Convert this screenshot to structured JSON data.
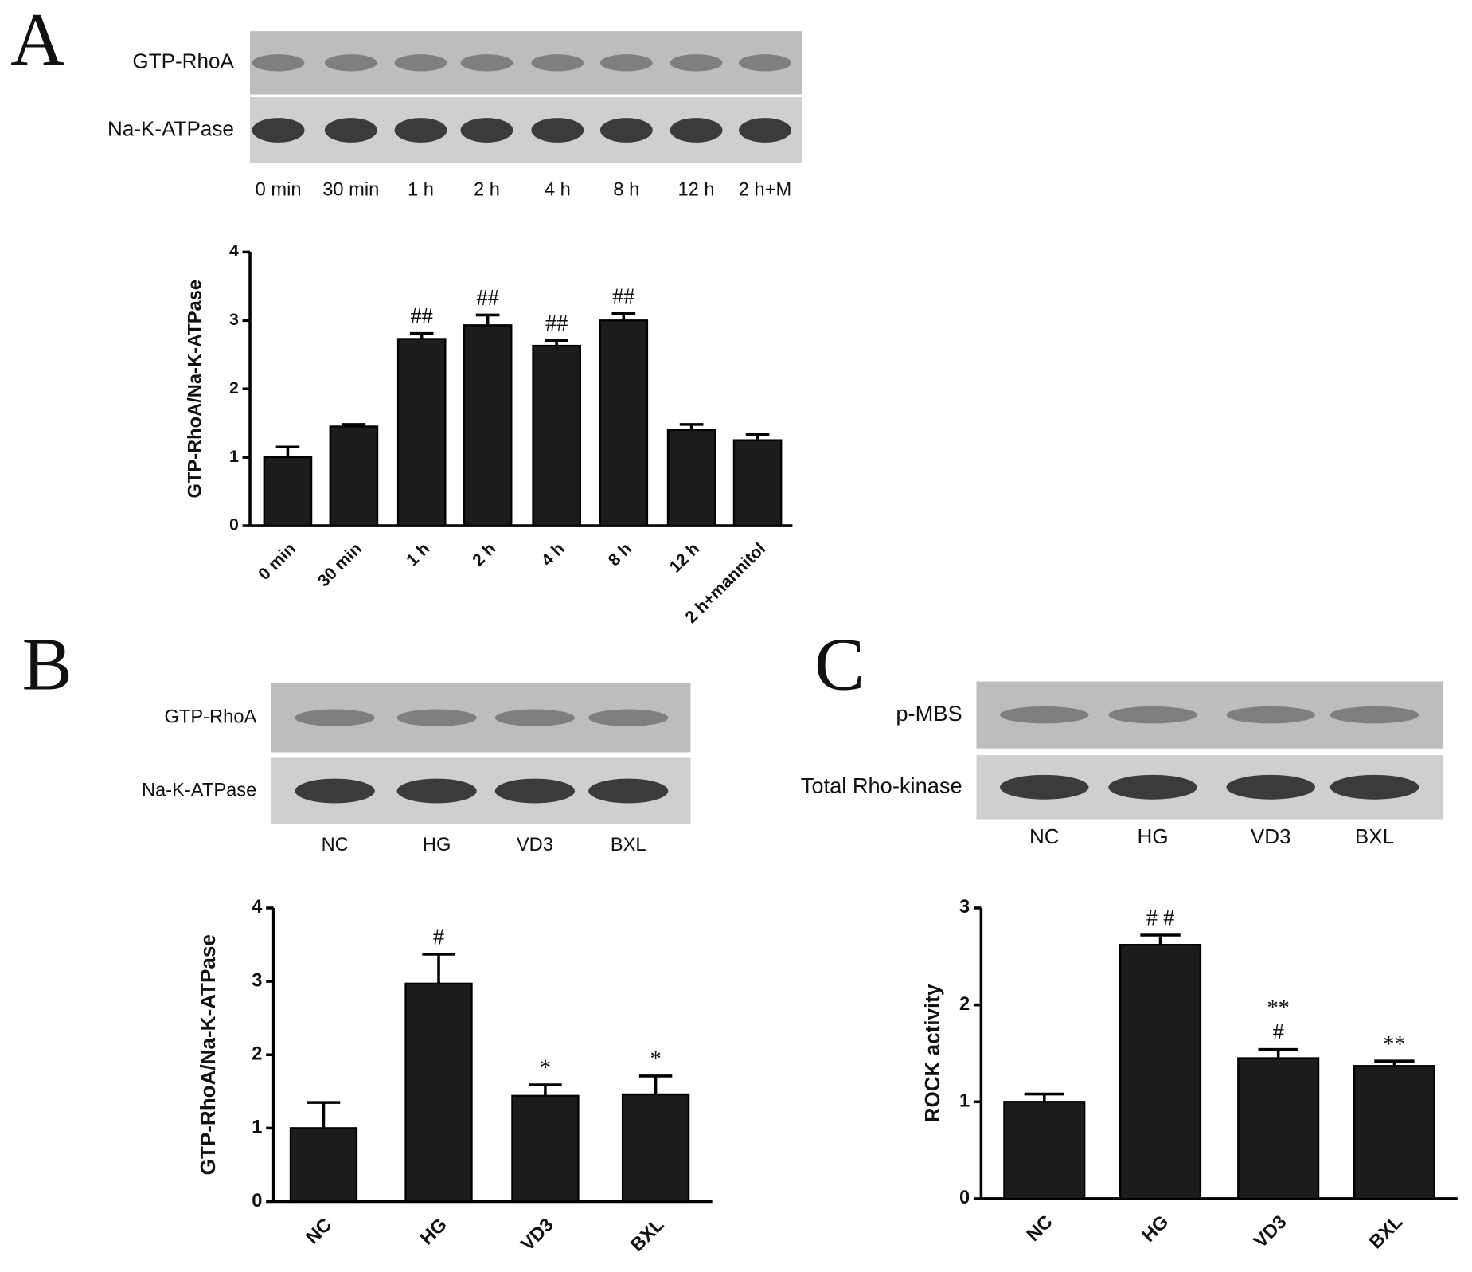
{
  "panels": [
    {
      "letter": "A",
      "blot": {
        "rows": [
          "GTP-RhoA",
          "Na-K-ATPase"
        ],
        "lanes": [
          "0 min",
          "30 min",
          "1 h",
          "2 h",
          "4 h",
          "8 h",
          "12 h",
          "2 h+M"
        ]
      }
    },
    {
      "letter": "B",
      "blot": {
        "rows": [
          "GTP-RhoA",
          "Na-K-ATPase"
        ],
        "lanes": [
          "NC",
          "HG",
          "VD3",
          "BXL"
        ]
      }
    },
    {
      "letter": "C",
      "blot": {
        "rows": [
          "p-MBS",
          "Total Rho-kinase"
        ],
        "lanes": [
          "NC",
          "HG",
          "VD3",
          "BXL"
        ]
      }
    }
  ],
  "chart_data": [
    {
      "type": "bar",
      "ylabel": "GTP-RhoA/Na-K-ATPase",
      "categories": [
        "0 min",
        "30 min",
        "1 h",
        "2 h",
        "4 h",
        "8 h",
        "12 h",
        "2 h+mannitol"
      ],
      "values": [
        1.0,
        1.45,
        2.73,
        2.93,
        2.63,
        3.0,
        1.4,
        1.25
      ],
      "errors": [
        0.15,
        0.03,
        0.08,
        0.15,
        0.08,
        0.1,
        0.08,
        0.08
      ],
      "annotations": [
        null,
        null,
        [
          "##"
        ],
        [
          "##"
        ],
        [
          "##"
        ],
        [
          "##"
        ],
        null,
        null
      ],
      "color": "#1c1c1c",
      "ylim": [
        0,
        4
      ],
      "yticks": [
        0,
        1,
        2,
        3,
        4
      ]
    },
    {
      "type": "bar",
      "ylabel": "GTP-RhoA/Na-K-ATPase",
      "categories": [
        "NC",
        "HG",
        "VD3",
        "BXL"
      ],
      "values": [
        1.0,
        2.97,
        1.44,
        1.46
      ],
      "errors": [
        0.35,
        0.4,
        0.15,
        0.25
      ],
      "annotations": [
        null,
        [
          "#"
        ],
        [
          "*"
        ],
        [
          "*"
        ]
      ],
      "color": "#1c1c1c",
      "ylim": [
        0,
        4
      ],
      "yticks": [
        0,
        1,
        2,
        3,
        4
      ]
    },
    {
      "type": "bar",
      "ylabel": "ROCK activity",
      "categories": [
        "NC",
        "HG",
        "VD3",
        "BXL"
      ],
      "values": [
        1.0,
        2.62,
        1.45,
        1.37
      ],
      "errors": [
        0.08,
        0.1,
        0.09,
        0.05
      ],
      "annotations": [
        null,
        [
          "# #"
        ],
        [
          "**",
          "#"
        ],
        [
          "**"
        ]
      ],
      "color": "#1c1c1c",
      "ylim": [
        0,
        3
      ],
      "yticks": [
        0,
        1,
        2,
        3
      ]
    }
  ]
}
